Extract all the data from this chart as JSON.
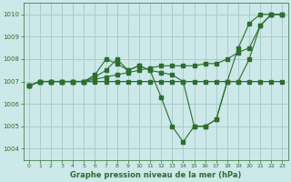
{
  "background_color": "#cce8e8",
  "grid_color": "#aacccc",
  "line_color": "#2d6e2d",
  "title": "Graphe pression niveau de la mer (hPa)",
  "xlim": [
    -0.5,
    23.5
  ],
  "ylim": [
    1003.5,
    1010.5
  ],
  "yticks": [
    1004,
    1005,
    1006,
    1007,
    1008,
    1009,
    1010
  ],
  "xticks": [
    0,
    1,
    2,
    3,
    4,
    5,
    6,
    7,
    8,
    9,
    10,
    11,
    12,
    13,
    14,
    15,
    16,
    17,
    18,
    19,
    20,
    21,
    22,
    23
  ],
  "lines": [
    {
      "x": [
        0,
        1,
        2,
        3,
        4,
        5,
        6,
        7,
        8,
        9,
        10,
        11,
        12,
        13,
        14,
        15,
        16,
        17,
        18,
        19,
        20,
        21,
        22,
        23
      ],
      "y": [
        1006.8,
        1007.0,
        1007.0,
        1007.0,
        1007.0,
        1007.0,
        1007.0,
        1007.0,
        1007.0,
        1007.0,
        1007.0,
        1007.0,
        1007.0,
        1007.0,
        1007.0,
        1007.0,
        1007.0,
        1007.0,
        1007.0,
        1007.0,
        1007.0,
        1007.0,
        1007.0,
        1007.0
      ]
    },
    {
      "x": [
        0,
        1,
        2,
        3,
        4,
        5,
        6,
        7,
        8,
        9,
        10,
        11,
        12,
        13,
        14,
        15,
        16,
        17,
        18,
        19,
        20,
        21,
        22,
        23
      ],
      "y": [
        1006.8,
        1007.0,
        1007.0,
        1007.0,
        1007.0,
        1007.0,
        1007.1,
        1007.2,
        1007.3,
        1007.4,
        1007.5,
        1007.6,
        1007.7,
        1007.7,
        1007.7,
        1007.7,
        1007.8,
        1007.8,
        1008.0,
        1008.3,
        1008.5,
        1009.5,
        1010.0,
        1010.0
      ]
    },
    {
      "x": [
        0,
        1,
        2,
        3,
        4,
        5,
        6,
        7,
        8,
        9,
        10,
        11,
        12,
        13,
        14,
        15,
        16,
        17,
        18,
        19,
        20,
        21,
        22,
        23
      ],
      "y": [
        1006.8,
        1007.0,
        1007.0,
        1007.0,
        1007.0,
        1007.0,
        1007.3,
        1008.0,
        1007.8,
        1007.5,
        1007.7,
        1007.5,
        1006.3,
        1005.0,
        1004.3,
        1005.0,
        1005.0,
        1005.3,
        1007.0,
        1008.5,
        1009.6,
        1010.0,
        1010.0,
        1010.0
      ]
    },
    {
      "x": [
        0,
        1,
        2,
        3,
        4,
        5,
        6,
        7,
        8,
        9,
        10,
        11,
        12,
        13,
        14,
        15,
        16,
        17,
        18,
        19,
        20,
        21,
        22,
        23
      ],
      "y": [
        1006.8,
        1007.0,
        1007.0,
        1007.0,
        1007.0,
        1007.0,
        1007.2,
        1007.5,
        1008.0,
        1007.5,
        1007.7,
        1007.5,
        1007.4,
        1007.3,
        1007.0,
        1005.0,
        1005.0,
        1005.3,
        1007.0,
        1007.0,
        1008.0,
        1009.5,
        1010.0,
        1010.0
      ]
    }
  ]
}
